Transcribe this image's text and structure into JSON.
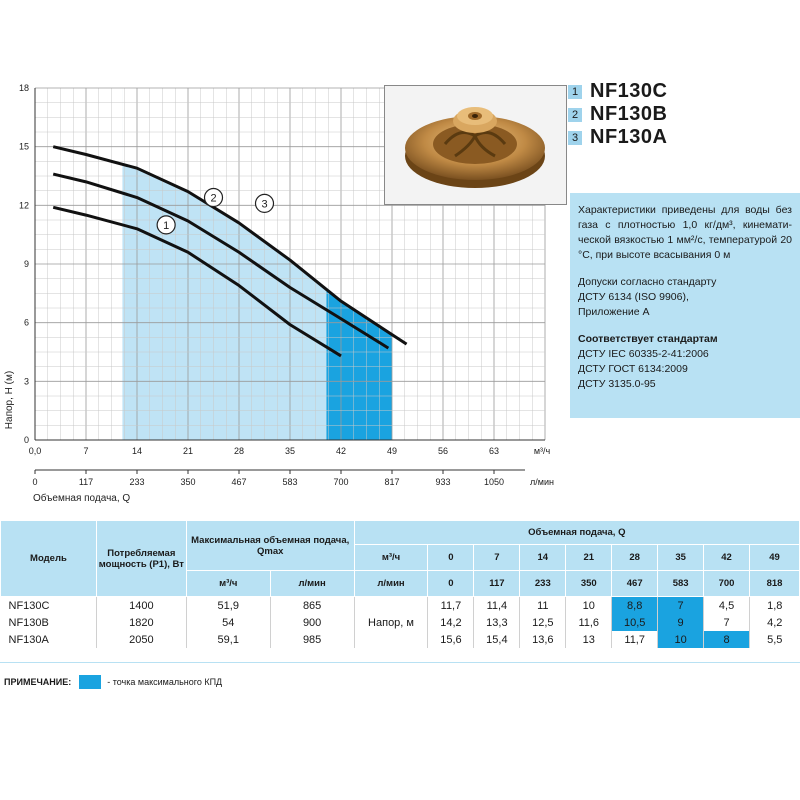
{
  "chart_data": {
    "type": "line",
    "x_unit": "м³/ч",
    "x2_unit": "л/мин",
    "x_ticks": [
      0,
      7,
      14,
      21,
      28,
      35,
      42,
      49,
      56,
      63
    ],
    "x_tick_labels": [
      "0,0",
      "7",
      "14",
      "21",
      "28",
      "35",
      "42",
      "49",
      "56",
      "63"
    ],
    "x2_tick_labels": [
      "0",
      "117",
      "233",
      "350",
      "467",
      "583",
      "700",
      "817",
      "933",
      "1050"
    ],
    "y_ticks": [
      0,
      3,
      6,
      9,
      12,
      15,
      18
    ],
    "xlim": [
      0,
      70
    ],
    "ylim": [
      0,
      18
    ],
    "ylabel": "Напор, H (м)",
    "xlabel": "Объемная подача, Q",
    "series": [
      {
        "label": "1",
        "x": [
          2.5,
          7,
          14,
          21,
          28,
          35,
          42
        ],
        "y": [
          11.9,
          11.5,
          10.8,
          9.6,
          7.9,
          5.9,
          4.3
        ]
      },
      {
        "label": "2",
        "x": [
          2.5,
          7,
          14,
          21,
          28,
          35,
          42,
          48.5
        ],
        "y": [
          13.6,
          13.2,
          12.4,
          11.2,
          9.6,
          7.8,
          6.2,
          4.7
        ]
      },
      {
        "label": "3",
        "x": [
          2.5,
          7,
          14,
          21,
          28,
          35,
          42,
          51
        ],
        "y": [
          15.0,
          14.6,
          13.9,
          12.7,
          11.1,
          9.2,
          7.1,
          4.9
        ]
      }
    ],
    "band_light_x": [
      12,
      40
    ],
    "band_dark_x": [
      40,
      49
    ]
  },
  "models": [
    {
      "num": "1",
      "name": "NF130C"
    },
    {
      "num": "2",
      "name": "NF130B"
    },
    {
      "num": "3",
      "name": "NF130A"
    }
  ],
  "info": {
    "p1": "Характеристики приведены для воды без газа с плотностью 1,0 кг/дм³, кинемати-ческой вязкостью 1 мм²/с, температурой 20 °С, при высоте всасывания 0 м",
    "p2_lines": [
      "Допуски согласно стандарту",
      "ДСТУ 6134 (ISO 9906),",
      "Приложение А"
    ],
    "p3_title": "Соответствует стандартам",
    "p3_lines": [
      "ДСТУ IEC 60335-2-41:2006",
      "ДСТУ ГОСТ 6134:2009",
      "ДСТУ 3135.0-95"
    ]
  },
  "table": {
    "h_model": "Модель",
    "h_power": "Потребляемая мощность (P1), Вт",
    "h_qmax": "Максимальная объемная подача, Qmax",
    "h_qmax_m3": "м³/ч",
    "h_qmax_lmin": "л/мин",
    "h_flow": "Объемная подача, Q",
    "h_row_m3": "м³/ч",
    "h_row_lmin": "л/мин",
    "flow_m3": [
      "0",
      "7",
      "14",
      "21",
      "28",
      "35",
      "42",
      "49"
    ],
    "flow_lmin": [
      "0",
      "117",
      "233",
      "350",
      "467",
      "583",
      "700",
      "818"
    ],
    "napor_label": "Напор, м",
    "rows": [
      {
        "model": "NF130C",
        "power": "1400",
        "qm3": "51,9",
        "qlmin": "865",
        "values": [
          "11,7",
          "11,4",
          "11",
          "10",
          "8,8",
          "7",
          "4,5",
          "1,8"
        ]
      },
      {
        "model": "NF130B",
        "power": "1820",
        "qm3": "54",
        "qlmin": "900",
        "values": [
          "14,2",
          "13,3",
          "12,5",
          "11,6",
          "10,5",
          "9",
          "7",
          "4,2"
        ]
      },
      {
        "model": "NF130A",
        "power": "2050",
        "qm3": "59,1",
        "qlmin": "985",
        "values": [
          "15,6",
          "15,4",
          "13,6",
          "13",
          "11,7",
          "10",
          "8",
          "5,5"
        ]
      }
    ],
    "highlights": [
      [
        4,
        5
      ],
      [
        4,
        5
      ],
      [
        5,
        6
      ]
    ]
  },
  "note": {
    "label": "ПРИМЕЧАНИЕ:",
    "text": "- точка максимального КПД"
  },
  "colors": {
    "band_light": "#bfe3f5",
    "band_dark": "#1aa3e0",
    "accent_light": "#b8e1f3"
  }
}
